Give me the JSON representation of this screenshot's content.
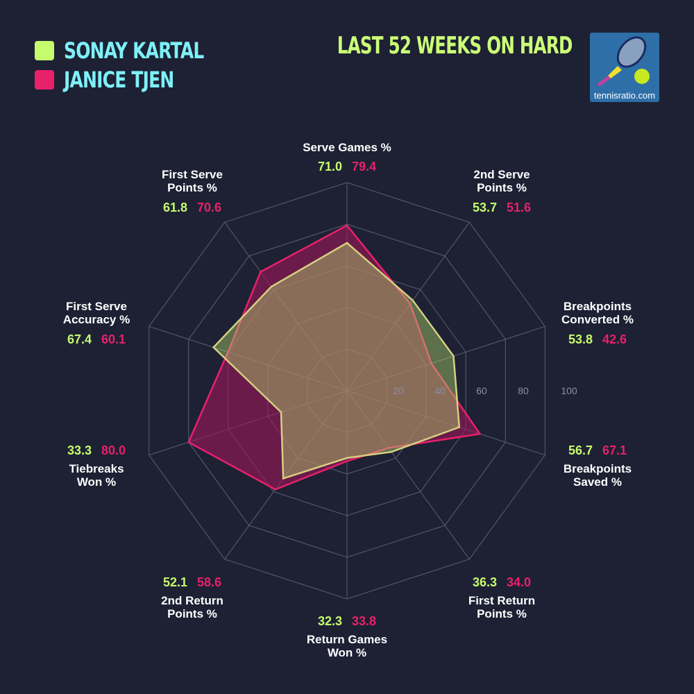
{
  "colors": {
    "background": "#1d2133",
    "player1": "#c6fb6e",
    "player2": "#e8216a",
    "legend_text": "#7ef0f8",
    "title": "#ccff77"
  },
  "title": "LAST 52 WEEKS ON HARD",
  "logo": {
    "text": "tennisratio.com",
    "icon": "tennis-racket-ball-icon"
  },
  "chart_data": {
    "type": "radar",
    "range": [
      0,
      100
    ],
    "ticks": [
      "20",
      "40",
      "60",
      "80",
      "100"
    ],
    "tick_values": [
      20,
      40,
      60,
      80,
      100
    ],
    "axes": [
      [
        "Serve Games %"
      ],
      [
        "2nd Serve",
        "Points %"
      ],
      [
        "Breakpoints",
        "Converted %"
      ],
      [
        "Breakpoints",
        "Saved %"
      ],
      [
        "First Return",
        "Points %"
      ],
      [
        "Return Games",
        "Won %"
      ],
      [
        "2nd Return",
        "Points %"
      ],
      [
        "Tiebreaks",
        "Won %"
      ],
      [
        "First Serve",
        "Accuracy %"
      ],
      [
        "First Serve",
        "Points %"
      ]
    ],
    "series": [
      {
        "name": "SONAY KARTAL",
        "values": [
          71.0,
          53.7,
          53.8,
          56.7,
          36.3,
          32.3,
          52.1,
          33.3,
          67.4,
          61.8
        ],
        "labels": [
          "71.0",
          "53.7",
          "53.8",
          "56.7",
          "36.3",
          "32.3",
          "52.1",
          "33.3",
          "67.4",
          "61.8"
        ]
      },
      {
        "name": "JANICE TJEN",
        "values": [
          79.4,
          51.6,
          42.6,
          67.1,
          34.0,
          33.8,
          58.6,
          80.0,
          60.1,
          70.6
        ],
        "labels": [
          "79.4",
          "51.6",
          "42.6",
          "67.1",
          "34.0",
          "33.8",
          "58.6",
          "80.0",
          "60.1",
          "70.6"
        ]
      }
    ],
    "legend": "top-left",
    "grid": true
  }
}
